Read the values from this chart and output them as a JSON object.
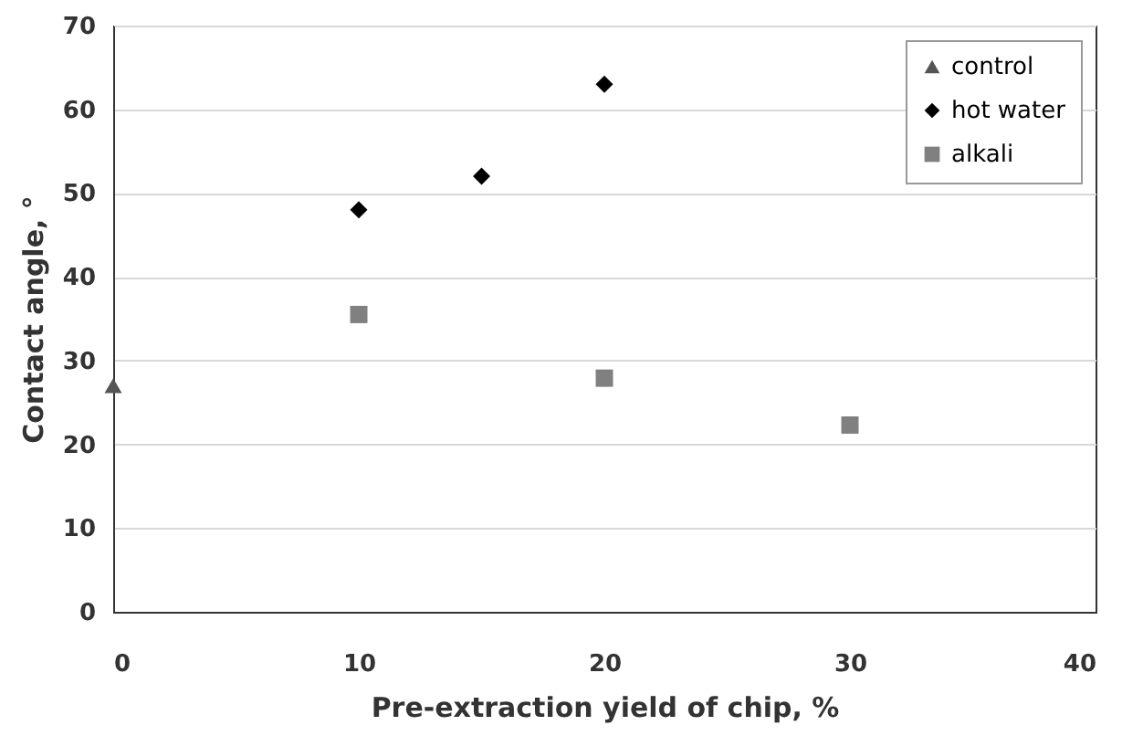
{
  "chart_data": {
    "type": "scatter",
    "xlabel": "Pre-extraction yield of chip, %",
    "ylabel": "Contact angle, °",
    "xlim": [
      0,
      40
    ],
    "xticks": [
      0,
      10,
      20,
      30,
      40
    ],
    "ylim": [
      0,
      70
    ],
    "yticks": [
      0,
      10,
      20,
      30,
      40,
      50,
      60,
      70
    ],
    "grid": "y",
    "legend": "top right",
    "series": [
      {
        "name": "control",
        "color": "#555555",
        "marker": "triangle",
        "x": [
          0
        ],
        "values": [
          27
        ]
      },
      {
        "name": "hot water",
        "color": "#000000",
        "marker": "diamond",
        "x": [
          10,
          15,
          20
        ],
        "values": [
          48,
          52,
          63
        ]
      },
      {
        "name": "alkali",
        "color": "#808080",
        "marker": "square",
        "x": [
          10,
          20,
          30
        ],
        "values": [
          35.5,
          27.9,
          22.3
        ]
      }
    ]
  }
}
